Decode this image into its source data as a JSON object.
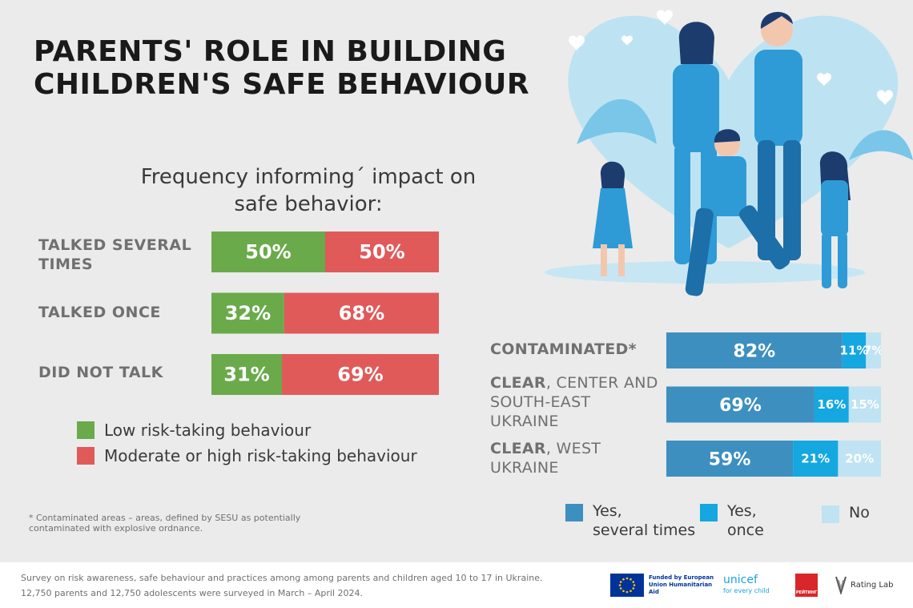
{
  "title": "PARENTS' ROLE IN BUILDING CHILDREN'S SAFE BEHAVIOUR",
  "colors": {
    "low_risk": "#6aaa4b",
    "moderate_high_risk": "#e05a5a",
    "yes_several": "#3d8fbf",
    "yes_once": "#14a7e0",
    "no": "#bfe3f2"
  },
  "chart_data": [
    {
      "type": "bar",
      "orientation": "horizontal",
      "stacked": true,
      "title": "Frequency informing´ impact on safe behavior:",
      "categories": [
        "TALKED SEVERAL TIMES",
        "TALKED ONCE",
        "DID NOT TALK"
      ],
      "series": [
        {
          "name": "Low risk-taking behaviour",
          "values": [
            50,
            32,
            31
          ],
          "labels": [
            "50%",
            "32%",
            "31%"
          ]
        },
        {
          "name": "Moderate or high risk-taking behaviour",
          "values": [
            50,
            68,
            69
          ],
          "labels": [
            "50%",
            "68%",
            "69%"
          ]
        }
      ],
      "xlim": [
        0,
        100
      ],
      "legend": "bottom"
    },
    {
      "type": "bar",
      "orientation": "horizontal",
      "stacked": true,
      "title": "",
      "categories": [
        {
          "bold": "CONTAMINATED*",
          "rest": ""
        },
        {
          "bold": "CLEAR",
          "rest": ", CENTER AND SOUTH-EAST UKRAINE"
        },
        {
          "bold": "CLEAR",
          "rest": ", WEST UKRAINE"
        }
      ],
      "series": [
        {
          "name": "Yes, several times",
          "values": [
            82,
            69,
            59
          ],
          "labels": [
            "82%",
            "69%",
            "59%"
          ]
        },
        {
          "name": "Yes, once",
          "values": [
            11,
            16,
            21
          ],
          "labels": [
            "11%",
            "16%",
            "21%"
          ]
        },
        {
          "name": "No",
          "values": [
            7,
            15,
            20
          ],
          "labels": [
            "7%",
            "15%",
            "20%"
          ]
        }
      ],
      "xlim": [
        0,
        100
      ],
      "legend": "bottom"
    }
  ],
  "legend_left": [
    {
      "label": "Low risk-taking behaviour"
    },
    {
      "label": "Moderate or high risk-taking behaviour"
    }
  ],
  "legend_right": [
    {
      "label_line1": "Yes,",
      "label_line2": "several times"
    },
    {
      "label_line1": "Yes,",
      "label_line2": "once"
    },
    {
      "label_line1": "No",
      "label_line2": ""
    }
  ],
  "footnote": "* Contaminated areas – areas, defined by SESU as potentially contaminated with explosive ordnance.",
  "footer": {
    "line1": "Survey on risk awareness, safe behaviour and practices among among parents and children aged 10 to 17 in Ukraine.",
    "line2": "12,750 parents and 12,750 adolescents were surveyed in March – April 2024.",
    "logos": {
      "eu": "Funded by European Union Humanitarian Aid",
      "unicef": "unicef",
      "unicef_tag": "for every child",
      "rating": "РЕЙТИНГ",
      "ratinglab": "Rating Lab"
    }
  },
  "icons": [
    "family-illustration",
    "eu-flag-icon",
    "unicef-logo-icon",
    "rating-logo-icon",
    "rating-lab-logo-icon"
  ]
}
